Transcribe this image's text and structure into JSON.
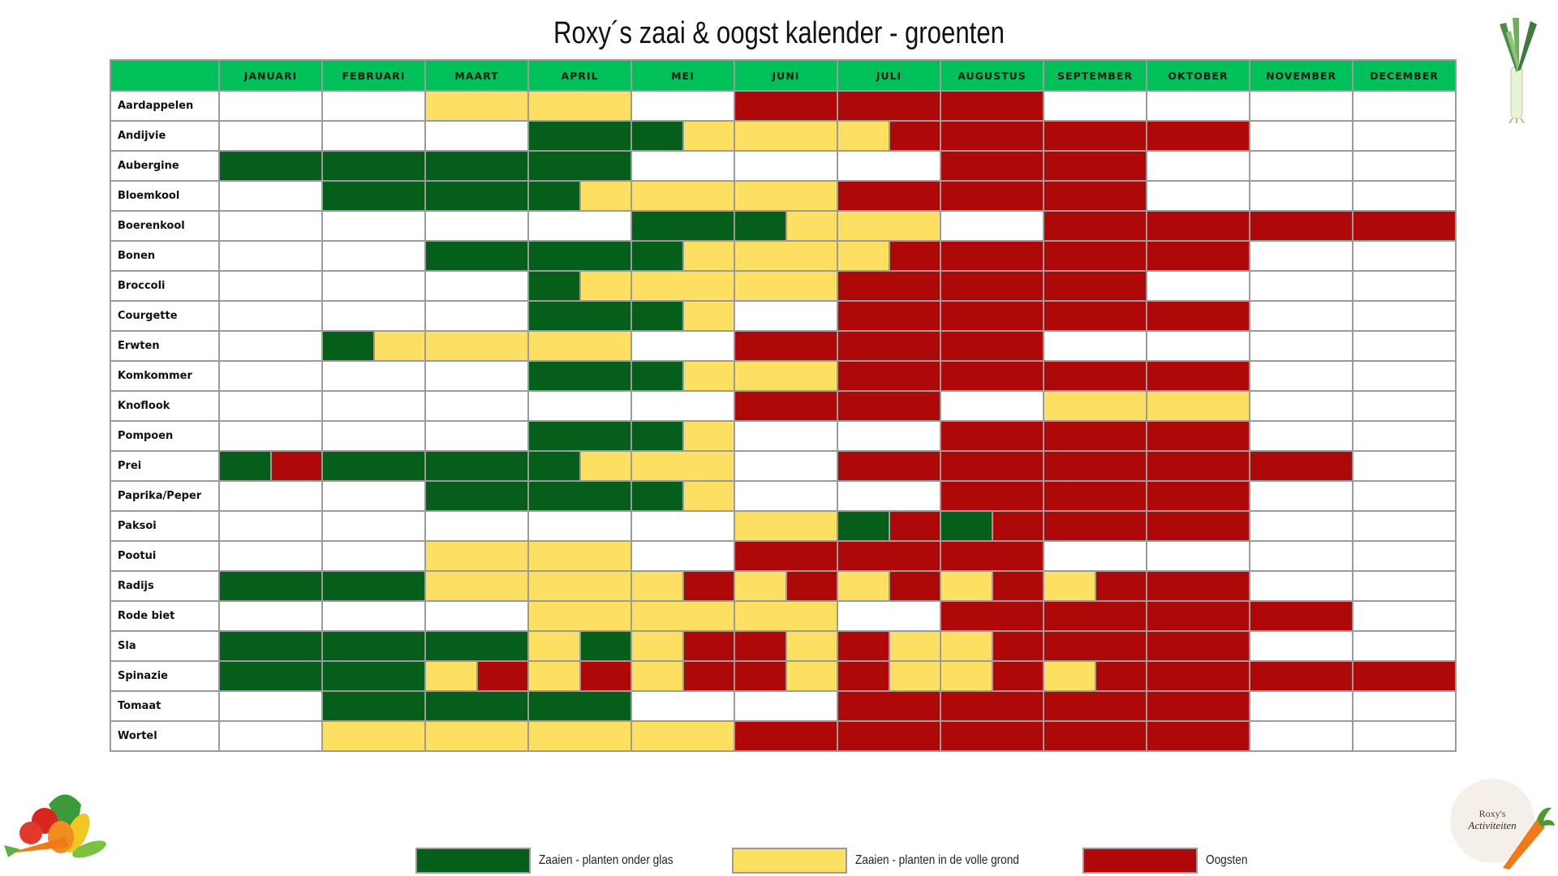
{
  "title": "Roxy´s zaai & oogst kalender - groenten",
  "months": [
    "JANUARI",
    "FEBRUARI",
    "MAART",
    "APRIL",
    "MEI",
    "JUNI",
    "JULI",
    "AUGUSTUS",
    "SEPTEMBER",
    "OKTOBER",
    "NOVEMBER",
    "DECEMBER"
  ],
  "colors": {
    "g": "#055e1a",
    "y": "#fddf61",
    "r": "#ae0808",
    "header": "#00c05a"
  },
  "rows": [
    {
      "name": "Aardappelen",
      "cells": [
        "w",
        "w",
        "y",
        "y",
        "w",
        "r",
        "r",
        "r",
        "w",
        "w",
        "w",
        "w"
      ]
    },
    {
      "name": "Andijvie",
      "cells": [
        "w",
        "w",
        "w",
        "g",
        "gy",
        "y",
        "yr",
        "r",
        "r",
        "r",
        "w",
        "w"
      ]
    },
    {
      "name": "Aubergine",
      "cells": [
        "g",
        "g",
        "g",
        "g",
        "w",
        "w",
        "w",
        "r",
        "r",
        "w",
        "w",
        "w"
      ]
    },
    {
      "name": "Bloemkool",
      "cells": [
        "w",
        "g",
        "g",
        "gy",
        "y",
        "y",
        "r",
        "r",
        "r",
        "w",
        "w",
        "w"
      ]
    },
    {
      "name": "Boerenkool",
      "cells": [
        "w",
        "w",
        "w",
        "w",
        "g",
        "gy",
        "y",
        "w",
        "r",
        "r",
        "r",
        "r"
      ]
    },
    {
      "name": "Bonen",
      "cells": [
        "w",
        "w",
        "g",
        "g",
        "gy",
        "y",
        "yr",
        "r",
        "r",
        "r",
        "w",
        "w"
      ]
    },
    {
      "name": "Broccoli",
      "cells": [
        "w",
        "w",
        "w",
        "gy",
        "y",
        "y",
        "r",
        "r",
        "r",
        "w",
        "w",
        "w"
      ]
    },
    {
      "name": "Courgette",
      "cells": [
        "w",
        "w",
        "w",
        "g",
        "gy",
        "w",
        "r",
        "r",
        "r",
        "r",
        "w",
        "w"
      ]
    },
    {
      "name": "Erwten",
      "cells": [
        "w",
        "gy",
        "y",
        "y",
        "w",
        "r",
        "r",
        "r",
        "w",
        "w",
        "w",
        "w"
      ]
    },
    {
      "name": "Komkommer",
      "cells": [
        "w",
        "w",
        "w",
        "g",
        "gy",
        "y",
        "r",
        "r",
        "r",
        "r",
        "w",
        "w"
      ]
    },
    {
      "name": "Knoflook",
      "cells": [
        "w",
        "w",
        "w",
        "w",
        "w",
        "r",
        "r",
        "w",
        "y",
        "y",
        "w",
        "w"
      ]
    },
    {
      "name": "Pompoen",
      "cells": [
        "w",
        "w",
        "w",
        "g",
        "gy",
        "w",
        "w",
        "r",
        "r",
        "r",
        "w",
        "w"
      ]
    },
    {
      "name": "Prei",
      "cells": [
        "gr",
        "g",
        "g",
        "gy",
        "y",
        "w",
        "r",
        "r",
        "r",
        "r",
        "r",
        "w"
      ]
    },
    {
      "name": "Paprika/Peper",
      "cells": [
        "w",
        "w",
        "g",
        "g",
        "gy",
        "w",
        "w",
        "r",
        "r",
        "r",
        "w",
        "w"
      ]
    },
    {
      "name": "Paksoi",
      "cells": [
        "w",
        "w",
        "w",
        "w",
        "w",
        "y",
        "gr",
        "gr",
        "r",
        "r",
        "w",
        "w"
      ]
    },
    {
      "name": "Pootui",
      "cells": [
        "w",
        "w",
        "y",
        "y",
        "w",
        "r",
        "r",
        "r",
        "w",
        "w",
        "w",
        "w"
      ]
    },
    {
      "name": "Radijs",
      "cells": [
        "g",
        "g",
        "y",
        "y",
        "yr",
        "yr",
        "yr",
        "yr",
        "yr",
        "r",
        "w",
        "w"
      ]
    },
    {
      "name": "Rode biet",
      "cells": [
        "w",
        "w",
        "w",
        "y",
        "y",
        "y",
        "w",
        "r",
        "r",
        "r",
        "r",
        "w"
      ]
    },
    {
      "name": "Sla",
      "cells": [
        "g",
        "g",
        "g",
        "yg",
        "yr",
        "ry",
        "ry",
        "yr",
        "r",
        "r",
        "w",
        "w"
      ]
    },
    {
      "name": "Spinazie",
      "cells": [
        "g",
        "g",
        "yr",
        "yr",
        "yr",
        "ry",
        "ry",
        "yr",
        "yr",
        "r",
        "r",
        "r"
      ]
    },
    {
      "name": "Tomaat",
      "cells": [
        "w",
        "g",
        "g",
        "g",
        "w",
        "w",
        "r",
        "r",
        "r",
        "r",
        "w",
        "w"
      ]
    },
    {
      "name": "Wortel",
      "cells": [
        "w",
        "y",
        "y",
        "y",
        "y",
        "r",
        "r",
        "r",
        "r",
        "r",
        "w",
        "w"
      ]
    }
  ],
  "legend": [
    {
      "key": "g",
      "label": "Zaaien - planten onder glas"
    },
    {
      "key": "y",
      "label": "Zaaien - planten in de volle grond"
    },
    {
      "key": "r",
      "label": "Oogsten"
    }
  ],
  "logo": {
    "line1": "Roxy's",
    "line2": "Activiteiten"
  },
  "decor": {
    "top_right": "leek-icon",
    "bottom_left": "vegetables-icon",
    "bottom_right": "carrot-icon"
  }
}
